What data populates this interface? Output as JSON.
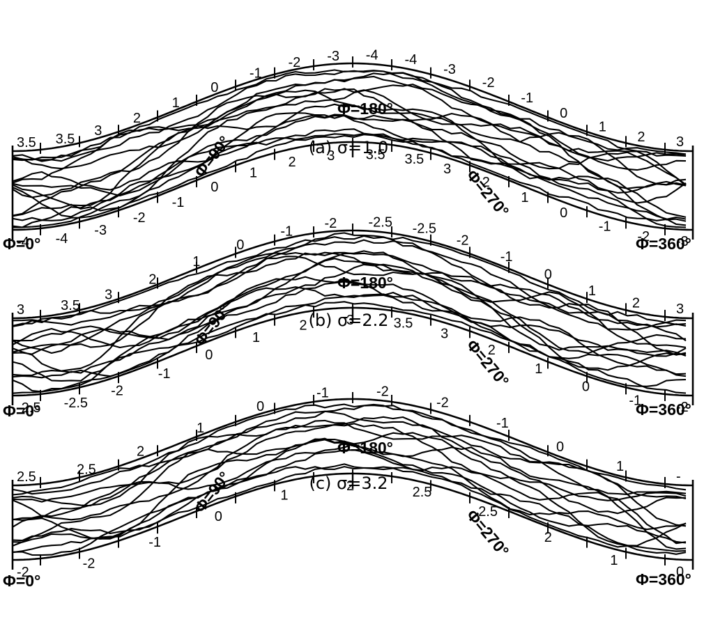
{
  "figure": {
    "ink_color": "#000000",
    "background_color": "#ffffff",
    "panels": [
      {
        "id": "a",
        "caption": "(a) σ=1.0",
        "phase_labels": {
          "start": "Φ=0°",
          "p90": "Φ=90°",
          "p180": "Φ=180°",
          "p270": "Φ=270°",
          "end": "Φ=360°"
        },
        "upper_contour_labels": [
          "3.5",
          "3.5",
          "3",
          "2",
          "1",
          "0",
          "-1",
          "-2",
          "-3",
          "-4",
          "-4",
          "-3",
          "-2",
          "-1",
          "0",
          "1",
          "2",
          "3"
        ],
        "lower_contour_labels": [
          "-4",
          "-4",
          "-3",
          "-2",
          "-1",
          "0",
          "1",
          "2",
          "3",
          "3.5",
          "3.5",
          "3",
          "2",
          "1",
          "0",
          "-1",
          "-2",
          "-3"
        ]
      },
      {
        "id": "b",
        "caption": "(b) σ=2.2",
        "phase_labels": {
          "start": "Φ=0°",
          "p90": "Φ=90°",
          "p180": "Φ=180°",
          "p270": "Φ=270°",
          "end": "Φ=360°"
        },
        "upper_contour_labels": [
          "3",
          "3.5",
          "3",
          "2",
          "1",
          "0",
          "-1",
          "-2",
          "-2.5",
          "-2.5",
          "-2",
          "-1",
          "0",
          "1",
          "2",
          "3"
        ],
        "lower_contour_labels": [
          "-2.5",
          "-2.5",
          "-2",
          "-1",
          "0",
          "1",
          "2",
          "3",
          "3.5",
          "3",
          "2",
          "1",
          "0",
          "-1",
          "-2"
        ]
      },
      {
        "id": "c",
        "caption": "(c) σ=3.2",
        "phase_labels": {
          "start": "Φ=0°",
          "p90": "Φ=90°",
          "p180": "Φ=180°",
          "p270": "Φ=270°",
          "end": "Φ=360°"
        },
        "upper_contour_labels": [
          "2.5",
          "2.5",
          "2",
          "1",
          "0",
          "-1",
          "-2",
          "-2",
          "-1",
          "0",
          "1",
          "-"
        ],
        "lower_contour_labels": [
          "-2",
          "-2",
          "-1",
          "0",
          "1",
          "2",
          "2.5",
          "2.5",
          "2",
          "1",
          "0"
        ]
      }
    ]
  }
}
